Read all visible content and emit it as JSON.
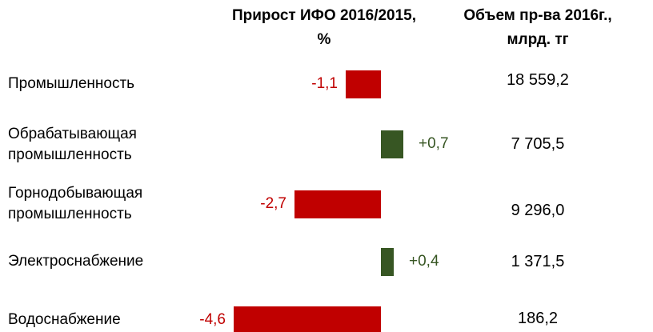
{
  "chart_data": {
    "type": "bar",
    "growth_title": "Прирост ИФО 2016/2015, %",
    "volume_title": "Объем пр-ва 2016г., млрд. тг",
    "categories": [
      "Промышленность",
      "Обрабатывающая промышленность",
      "Горнодобывающая промышленность",
      "Электроснабжение",
      "Водоснабжение"
    ],
    "values": [
      -1.1,
      0.7,
      -2.7,
      0.4,
      -4.6
    ],
    "value_labels": [
      "-1,1",
      "+0,7",
      "-2,7",
      "+0,4",
      "-4,6"
    ],
    "colors": [
      "#c00000",
      "#375623",
      "#c00000",
      "#375623",
      "#c00000"
    ],
    "volume_labels": [
      "18 559,2",
      "7 705,5",
      "9 296,0",
      "1 371,5",
      "186,2"
    ]
  }
}
